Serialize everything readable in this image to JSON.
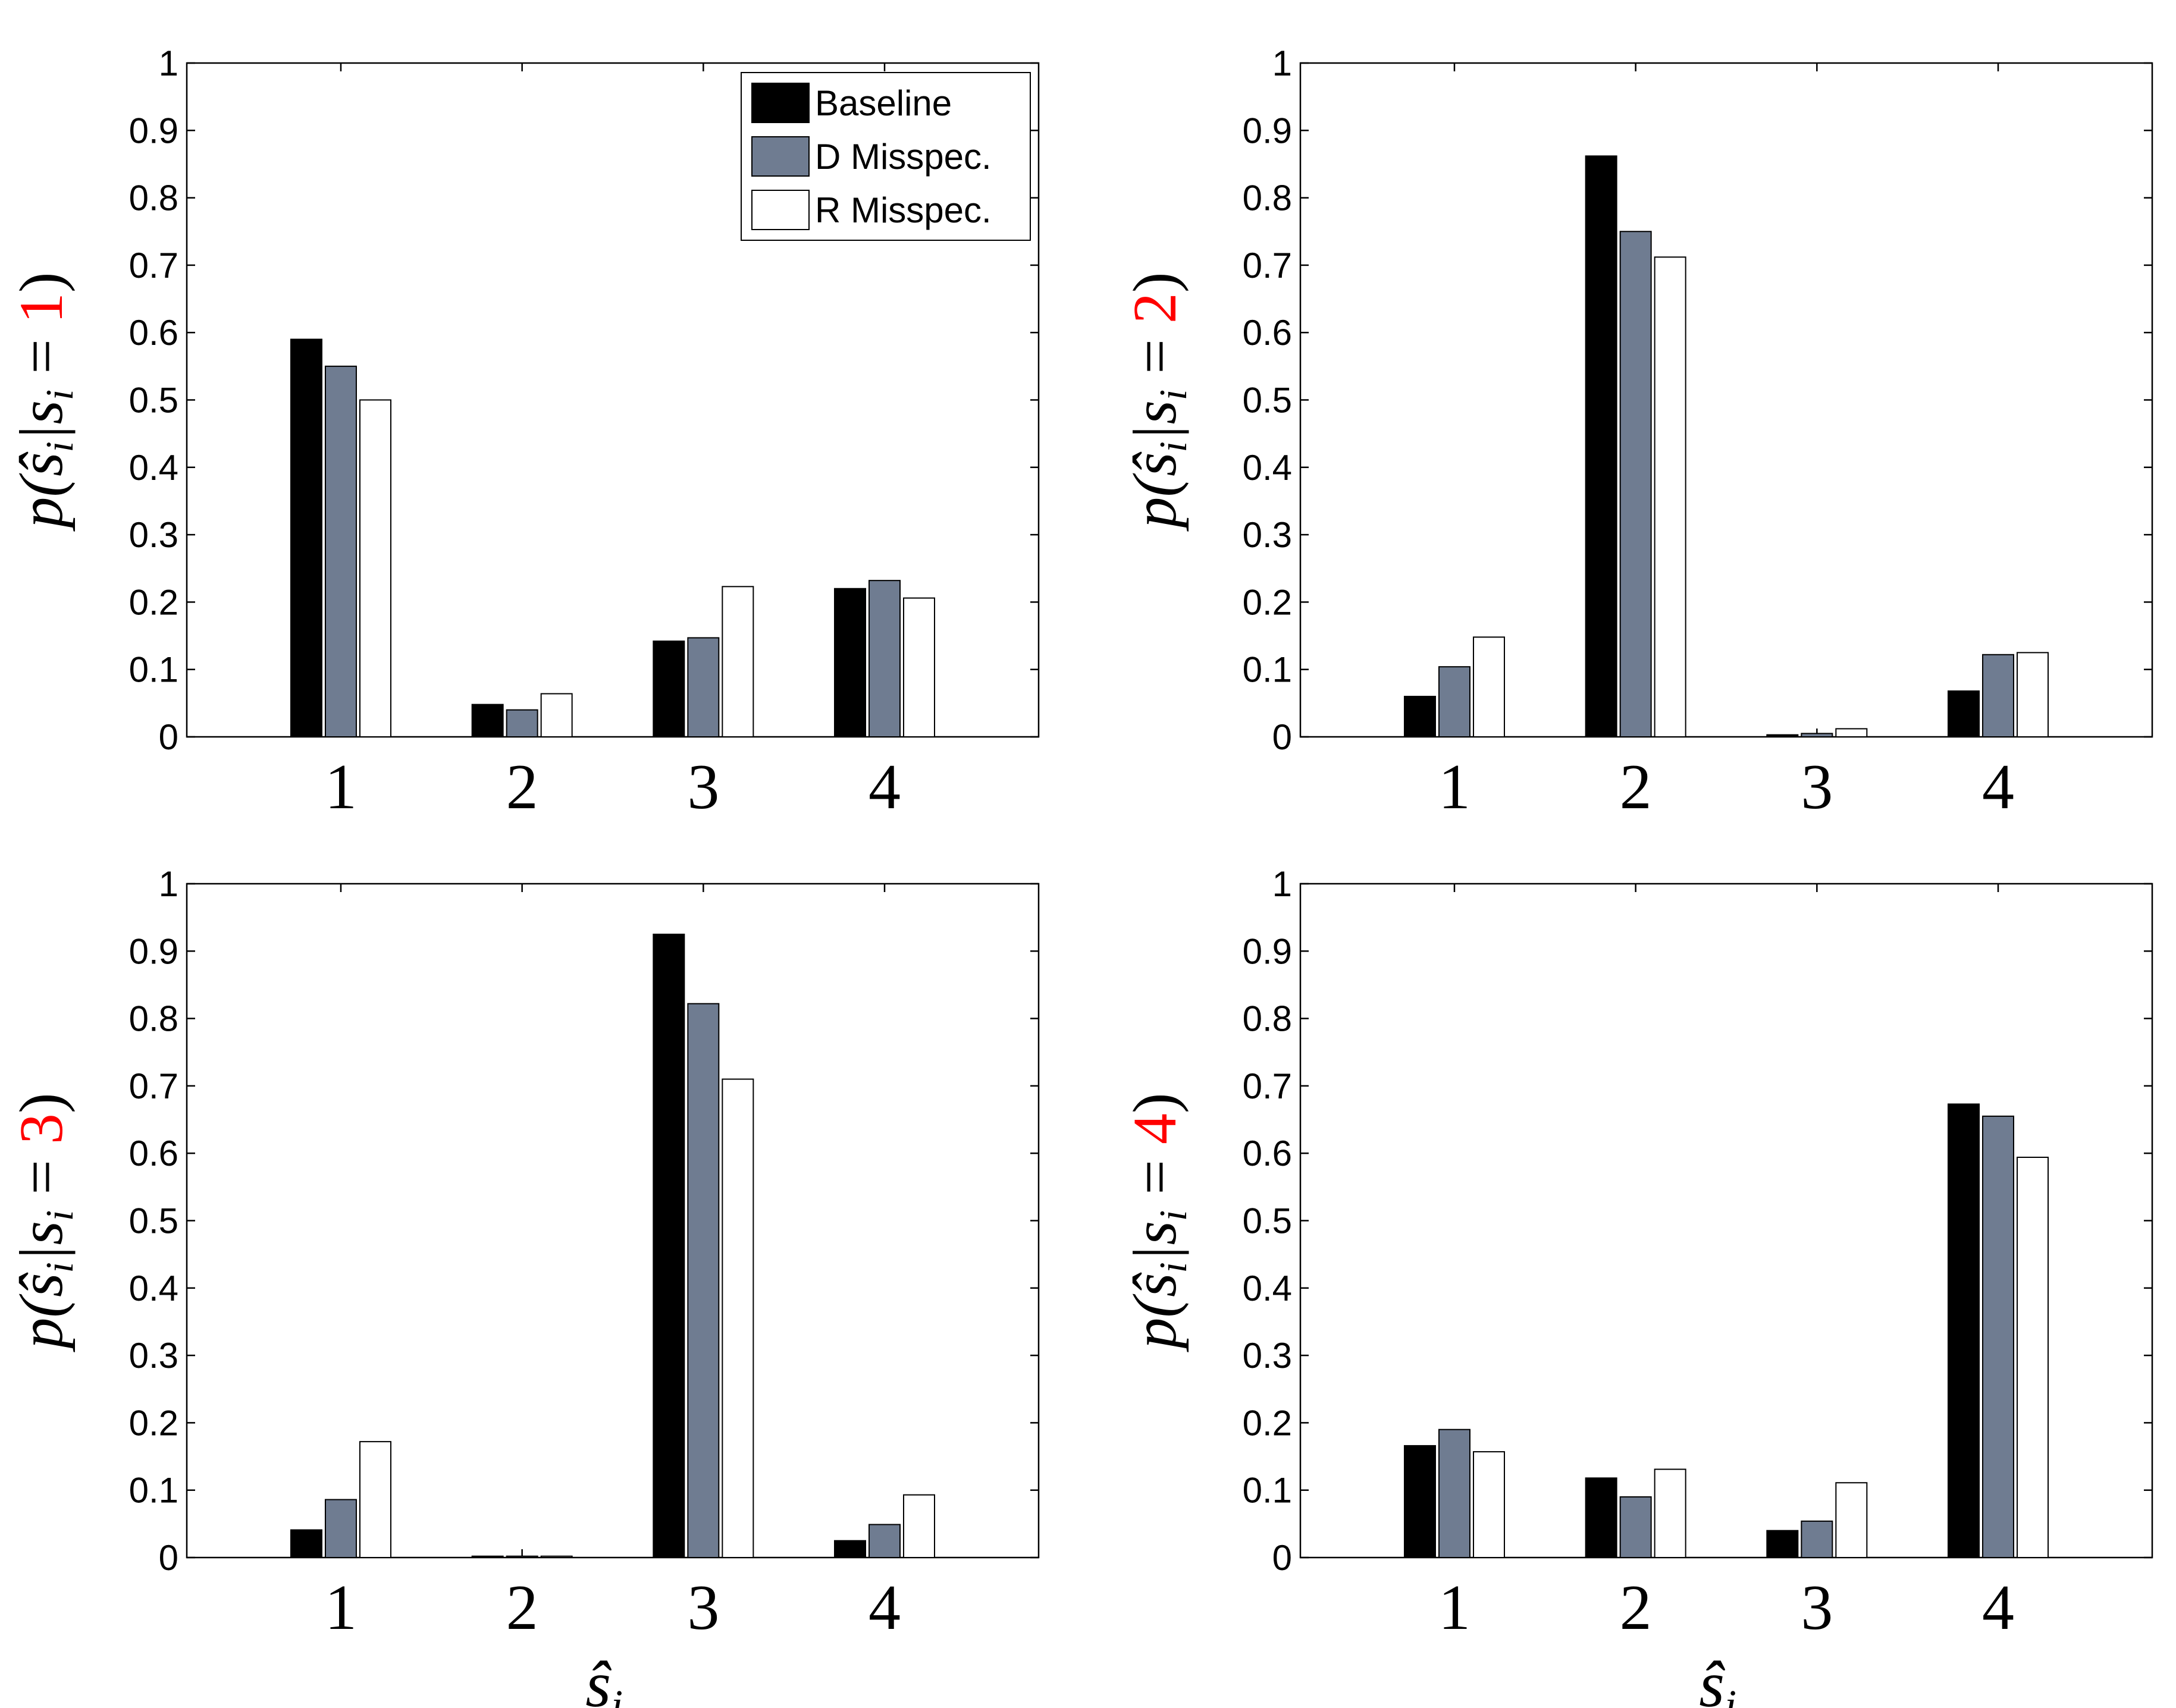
{
  "chart_data": [
    {
      "type": "bar",
      "categories": [
        "1",
        "2",
        "3",
        "4"
      ],
      "series": [
        {
          "name": "Baseline",
          "values": [
            0.59,
            0.048,
            0.142,
            0.22
          ]
        },
        {
          "name": "D Misspec.",
          "values": [
            0.55,
            0.04,
            0.147,
            0.232
          ]
        },
        {
          "name": "R Misspec.",
          "values": [
            0.5,
            0.064,
            0.223,
            0.206
          ]
        }
      ],
      "ylim": [
        0,
        1
      ],
      "yticks": [
        "0",
        "0.1",
        "0.2",
        "0.3",
        "0.4",
        "0.5",
        "0.6",
        "0.7",
        "0.8",
        "0.9",
        "1"
      ],
      "ylabel_pre": "p(ŝ",
      "ylabel_sub": "i",
      "ylabel_mid": "|s",
      "ylabel_sub2": "i",
      "ylabel_eq": " = ",
      "ylabel_value": "1",
      "ylabel_close": ")",
      "xlabel": "",
      "legend": true
    },
    {
      "type": "bar",
      "categories": [
        "1",
        "2",
        "3",
        "4"
      ],
      "series": [
        {
          "name": "Baseline",
          "values": [
            0.06,
            0.862,
            0.003,
            0.068
          ]
        },
        {
          "name": "D Misspec.",
          "values": [
            0.104,
            0.75,
            0.005,
            0.122
          ]
        },
        {
          "name": "R Misspec.",
          "values": [
            0.148,
            0.712,
            0.012,
            0.125
          ]
        }
      ],
      "ylim": [
        0,
        1
      ],
      "yticks": [
        "0",
        "0.1",
        "0.2",
        "0.3",
        "0.4",
        "0.5",
        "0.6",
        "0.7",
        "0.8",
        "0.9",
        "1"
      ],
      "ylabel_pre": "p(ŝ",
      "ylabel_sub": "i",
      "ylabel_mid": "|s",
      "ylabel_sub2": "i",
      "ylabel_eq": " = ",
      "ylabel_value": "2",
      "ylabel_close": ")",
      "xlabel": "",
      "legend": false
    },
    {
      "type": "bar",
      "categories": [
        "1",
        "2",
        "3",
        "4"
      ],
      "series": [
        {
          "name": "Baseline",
          "values": [
            0.041,
            0.002,
            0.925,
            0.025
          ]
        },
        {
          "name": "D Misspec.",
          "values": [
            0.086,
            0.002,
            0.822,
            0.049
          ]
        },
        {
          "name": "R Misspec.",
          "values": [
            0.172,
            0.002,
            0.71,
            0.093
          ]
        }
      ],
      "ylim": [
        0,
        1
      ],
      "yticks": [
        "0",
        "0.1",
        "0.2",
        "0.3",
        "0.4",
        "0.5",
        "0.6",
        "0.7",
        "0.8",
        "0.9",
        "1"
      ],
      "ylabel_pre": "p(ŝ",
      "ylabel_sub": "i",
      "ylabel_mid": "|s",
      "ylabel_sub2": "i",
      "ylabel_eq": " = ",
      "ylabel_value": "3",
      "ylabel_close": ")",
      "xlabel": "ŝ",
      "xlabel_sub": "i",
      "legend": false
    },
    {
      "type": "bar",
      "categories": [
        "1",
        "2",
        "3",
        "4"
      ],
      "series": [
        {
          "name": "Baseline",
          "values": [
            0.166,
            0.118,
            0.04,
            0.673
          ]
        },
        {
          "name": "D Misspec.",
          "values": [
            0.19,
            0.09,
            0.054,
            0.655
          ]
        },
        {
          "name": "R Misspec.",
          "values": [
            0.157,
            0.131,
            0.111,
            0.594
          ]
        }
      ],
      "ylim": [
        0,
        1
      ],
      "yticks": [
        "0",
        "0.1",
        "0.2",
        "0.3",
        "0.4",
        "0.5",
        "0.6",
        "0.7",
        "0.8",
        "0.9",
        "1"
      ],
      "ylabel_pre": "p(ŝ",
      "ylabel_sub": "i",
      "ylabel_mid": "|s",
      "ylabel_sub2": "i",
      "ylabel_eq": " = ",
      "ylabel_value": "4",
      "ylabel_close": ")",
      "xlabel": "ŝ",
      "xlabel_sub": "i",
      "legend": false
    }
  ],
  "colors": {
    "series": [
      "#000000",
      "#6f7c91",
      "#ffffff"
    ],
    "highlight": "#ff0000",
    "axis": "#000000"
  },
  "legend": {
    "items": [
      "Baseline",
      "D Misspec.",
      "R Misspec."
    ]
  }
}
